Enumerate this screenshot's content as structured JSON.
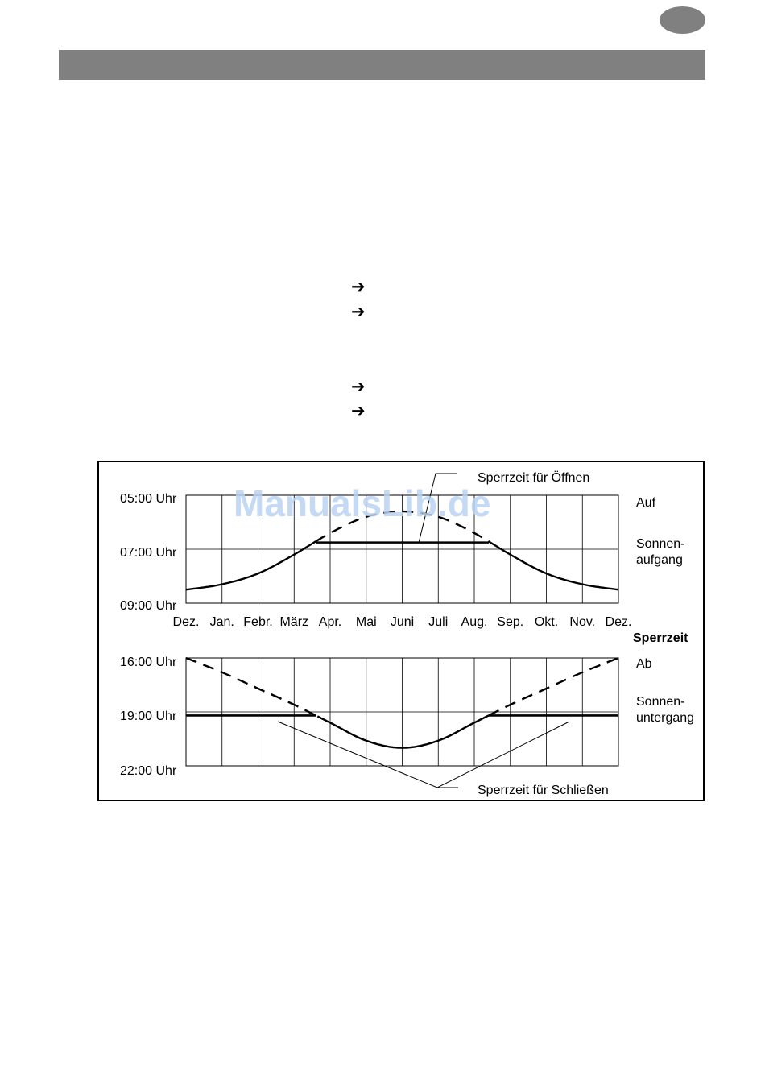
{
  "watermark": "ManualsLib.de",
  "arrows": [
    "➔",
    "➔",
    "➔",
    "➔"
  ],
  "chart_data": [
    {
      "type": "line",
      "title": "",
      "xlabel": "",
      "ylabel": "",
      "categories": [
        "Dez.",
        "Jan.",
        "Febr.",
        "März",
        "Apr.",
        "Mai",
        "Juni",
        "Juli",
        "Aug.",
        "Sep.",
        "Okt.",
        "Nov.",
        "Dez."
      ],
      "y_ticks": [
        "05:00 Uhr",
        "07:00 Uhr",
        "09:00 Uhr"
      ],
      "ylim": [
        5,
        9
      ],
      "y_inverted": true,
      "grid": true,
      "series_labels": {
        "time_line": "Auf",
        "natural_line": "Sonnen-\naufgang"
      },
      "series_label_lines": [
        "Auf",
        "Sonnen-",
        "aufgang"
      ],
      "sunrise_hours": [
        8.5,
        8.3,
        7.9,
        7.2,
        6.4,
        5.8,
        5.6,
        5.8,
        6.4,
        7.2,
        7.9,
        8.3,
        8.5
      ],
      "lock_time_hour": 6.75,
      "annotation": "Sperrzeit für Öffnen"
    },
    {
      "type": "line",
      "title": "",
      "xlabel": "",
      "ylabel": "",
      "categories": [
        "Dez.",
        "Jan.",
        "Febr.",
        "März",
        "Apr.",
        "Mai",
        "Juni",
        "Juli",
        "Aug.",
        "Sep.",
        "Okt.",
        "Nov.",
        "Dez."
      ],
      "y_ticks": [
        "16:00 Uhr",
        "19:00 Uhr",
        "22:00 Uhr"
      ],
      "ylim": [
        16,
        22
      ],
      "y_inverted": true,
      "grid": true,
      "series_labels": {
        "time_line": "Ab",
        "natural_line": "Sonnen-\nuntergang"
      },
      "series_label_lines": [
        "Ab",
        "Sonnen-",
        "untergang"
      ],
      "sunset_hours": [
        16.0,
        16.8,
        17.7,
        18.6,
        19.6,
        20.6,
        21.0,
        20.6,
        19.6,
        18.6,
        17.7,
        16.8,
        16.0
      ],
      "lock_time_hour": 19.2,
      "annotation": "Sperrzeit für Schließen"
    }
  ],
  "section_label": "Sperrzeit"
}
